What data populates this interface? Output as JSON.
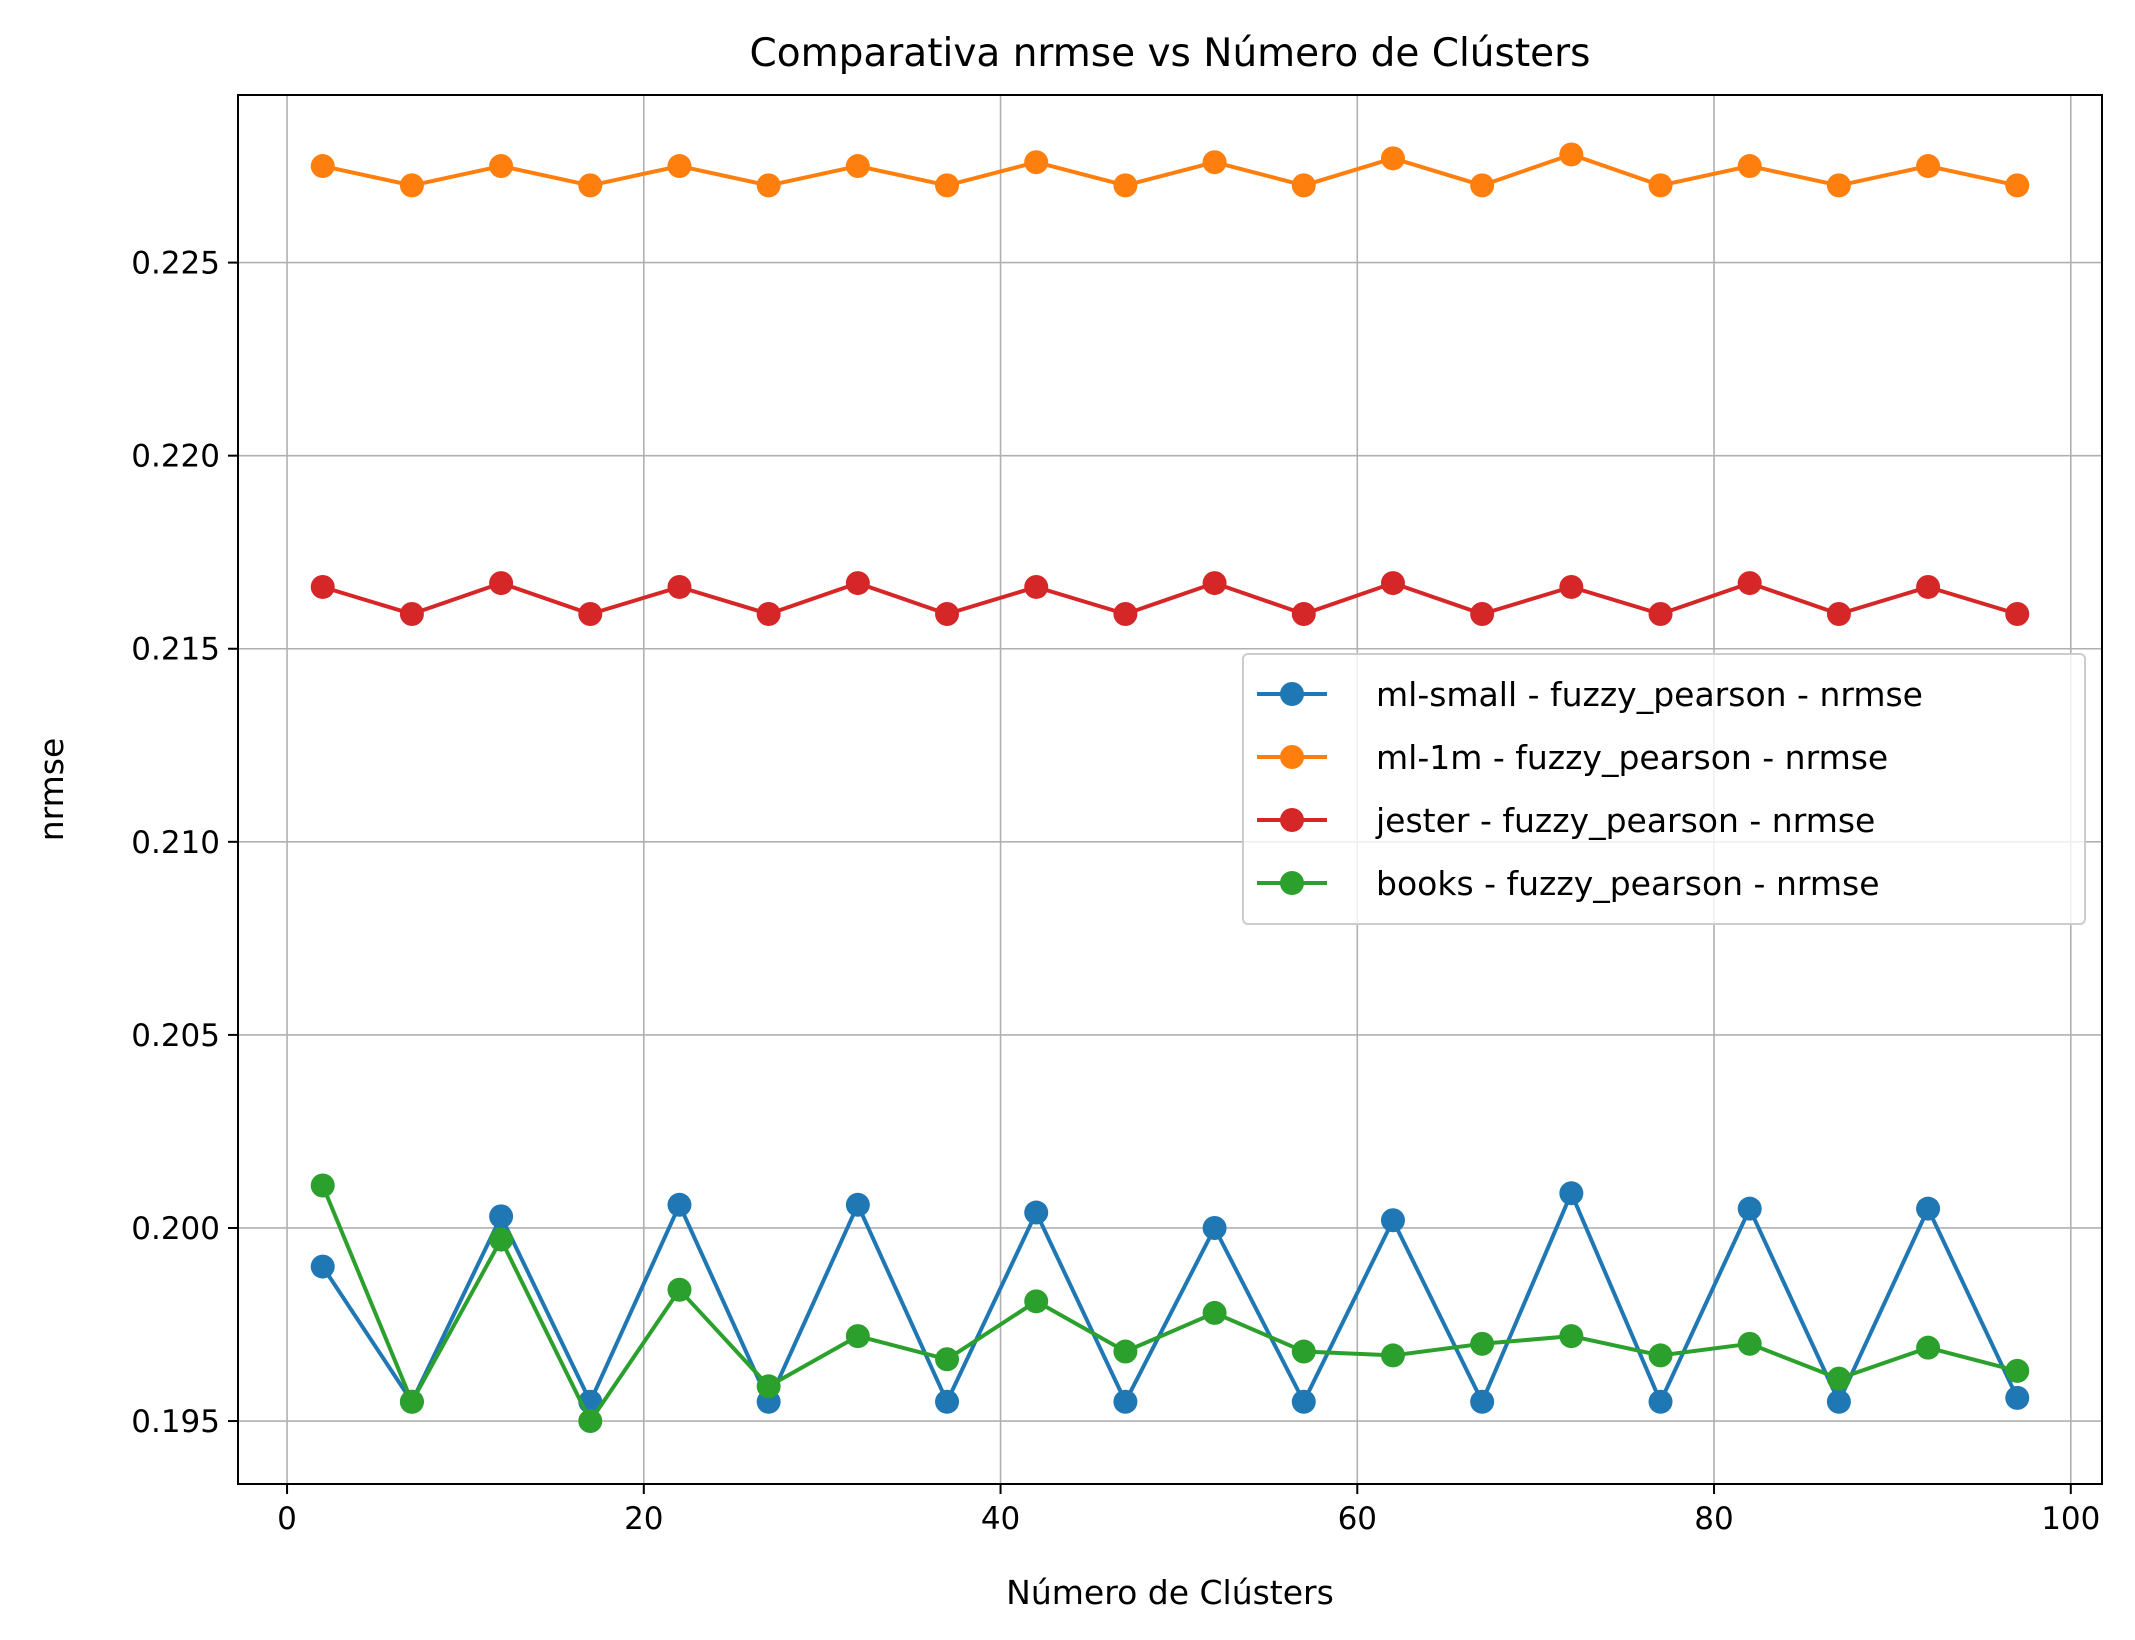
{
  "chart_data": {
    "type": "line",
    "title": "Comparativa nrmse vs Número de Clústers",
    "xlabel": "Número de Clústers",
    "ylabel": "nrmse",
    "xlim": [
      -2.75,
      101.75
    ],
    "ylim": [
      0.19337,
      0.22934
    ],
    "xticks": [
      0,
      20,
      40,
      60,
      80,
      100
    ],
    "xtick_labels": [
      "0",
      "20",
      "40",
      "60",
      "80",
      "100"
    ],
    "yticks": [
      0.195,
      0.2,
      0.205,
      0.21,
      0.215,
      0.22,
      0.225
    ],
    "ytick_labels": [
      "0.195",
      "0.200",
      "0.205",
      "0.210",
      "0.215",
      "0.220",
      "0.225"
    ],
    "grid": true,
    "legend_position": "center-right",
    "x": [
      2,
      7,
      12,
      17,
      22,
      27,
      32,
      37,
      42,
      47,
      52,
      57,
      62,
      67,
      72,
      77,
      82,
      87,
      92,
      97
    ],
    "series": [
      {
        "name": "ml-small - fuzzy_pearson - nrmse",
        "color": "#1f77b4",
        "values": [
          0.199,
          0.1955,
          0.2003,
          0.1955,
          0.2006,
          0.1955,
          0.2006,
          0.1955,
          0.2004,
          0.1955,
          0.2,
          0.1955,
          0.2002,
          0.1955,
          0.2009,
          0.1955,
          0.2005,
          0.1955,
          0.2005,
          0.1956
        ]
      },
      {
        "name": "ml-1m - fuzzy_pearson - nrmse",
        "color": "#ff7f0e",
        "values": [
          0.2275,
          0.227,
          0.2275,
          0.227,
          0.2275,
          0.227,
          0.2275,
          0.227,
          0.2276,
          0.227,
          0.2276,
          0.227,
          0.2277,
          0.227,
          0.2278,
          0.227,
          0.2275,
          0.227,
          0.2275,
          0.227
        ]
      },
      {
        "name": "jester - fuzzy_pearson - nrmse",
        "color": "#d62728",
        "values": [
          0.2166,
          0.2159,
          0.2167,
          0.2159,
          0.2166,
          0.2159,
          0.2167,
          0.2159,
          0.2166,
          0.2159,
          0.2167,
          0.2159,
          0.2167,
          0.2159,
          0.2166,
          0.2159,
          0.2167,
          0.2159,
          0.2166,
          0.2159
        ]
      },
      {
        "name": "books - fuzzy_pearson - nrmse",
        "color": "#2ca02c",
        "values": [
          0.2011,
          0.1955,
          0.1997,
          0.195,
          0.1984,
          0.1959,
          0.1972,
          0.1966,
          0.1981,
          0.1968,
          0.1978,
          0.1968,
          0.1967,
          0.197,
          0.1972,
          0.1967,
          0.197,
          0.1961,
          0.1969,
          0.1963
        ]
      }
    ]
  }
}
